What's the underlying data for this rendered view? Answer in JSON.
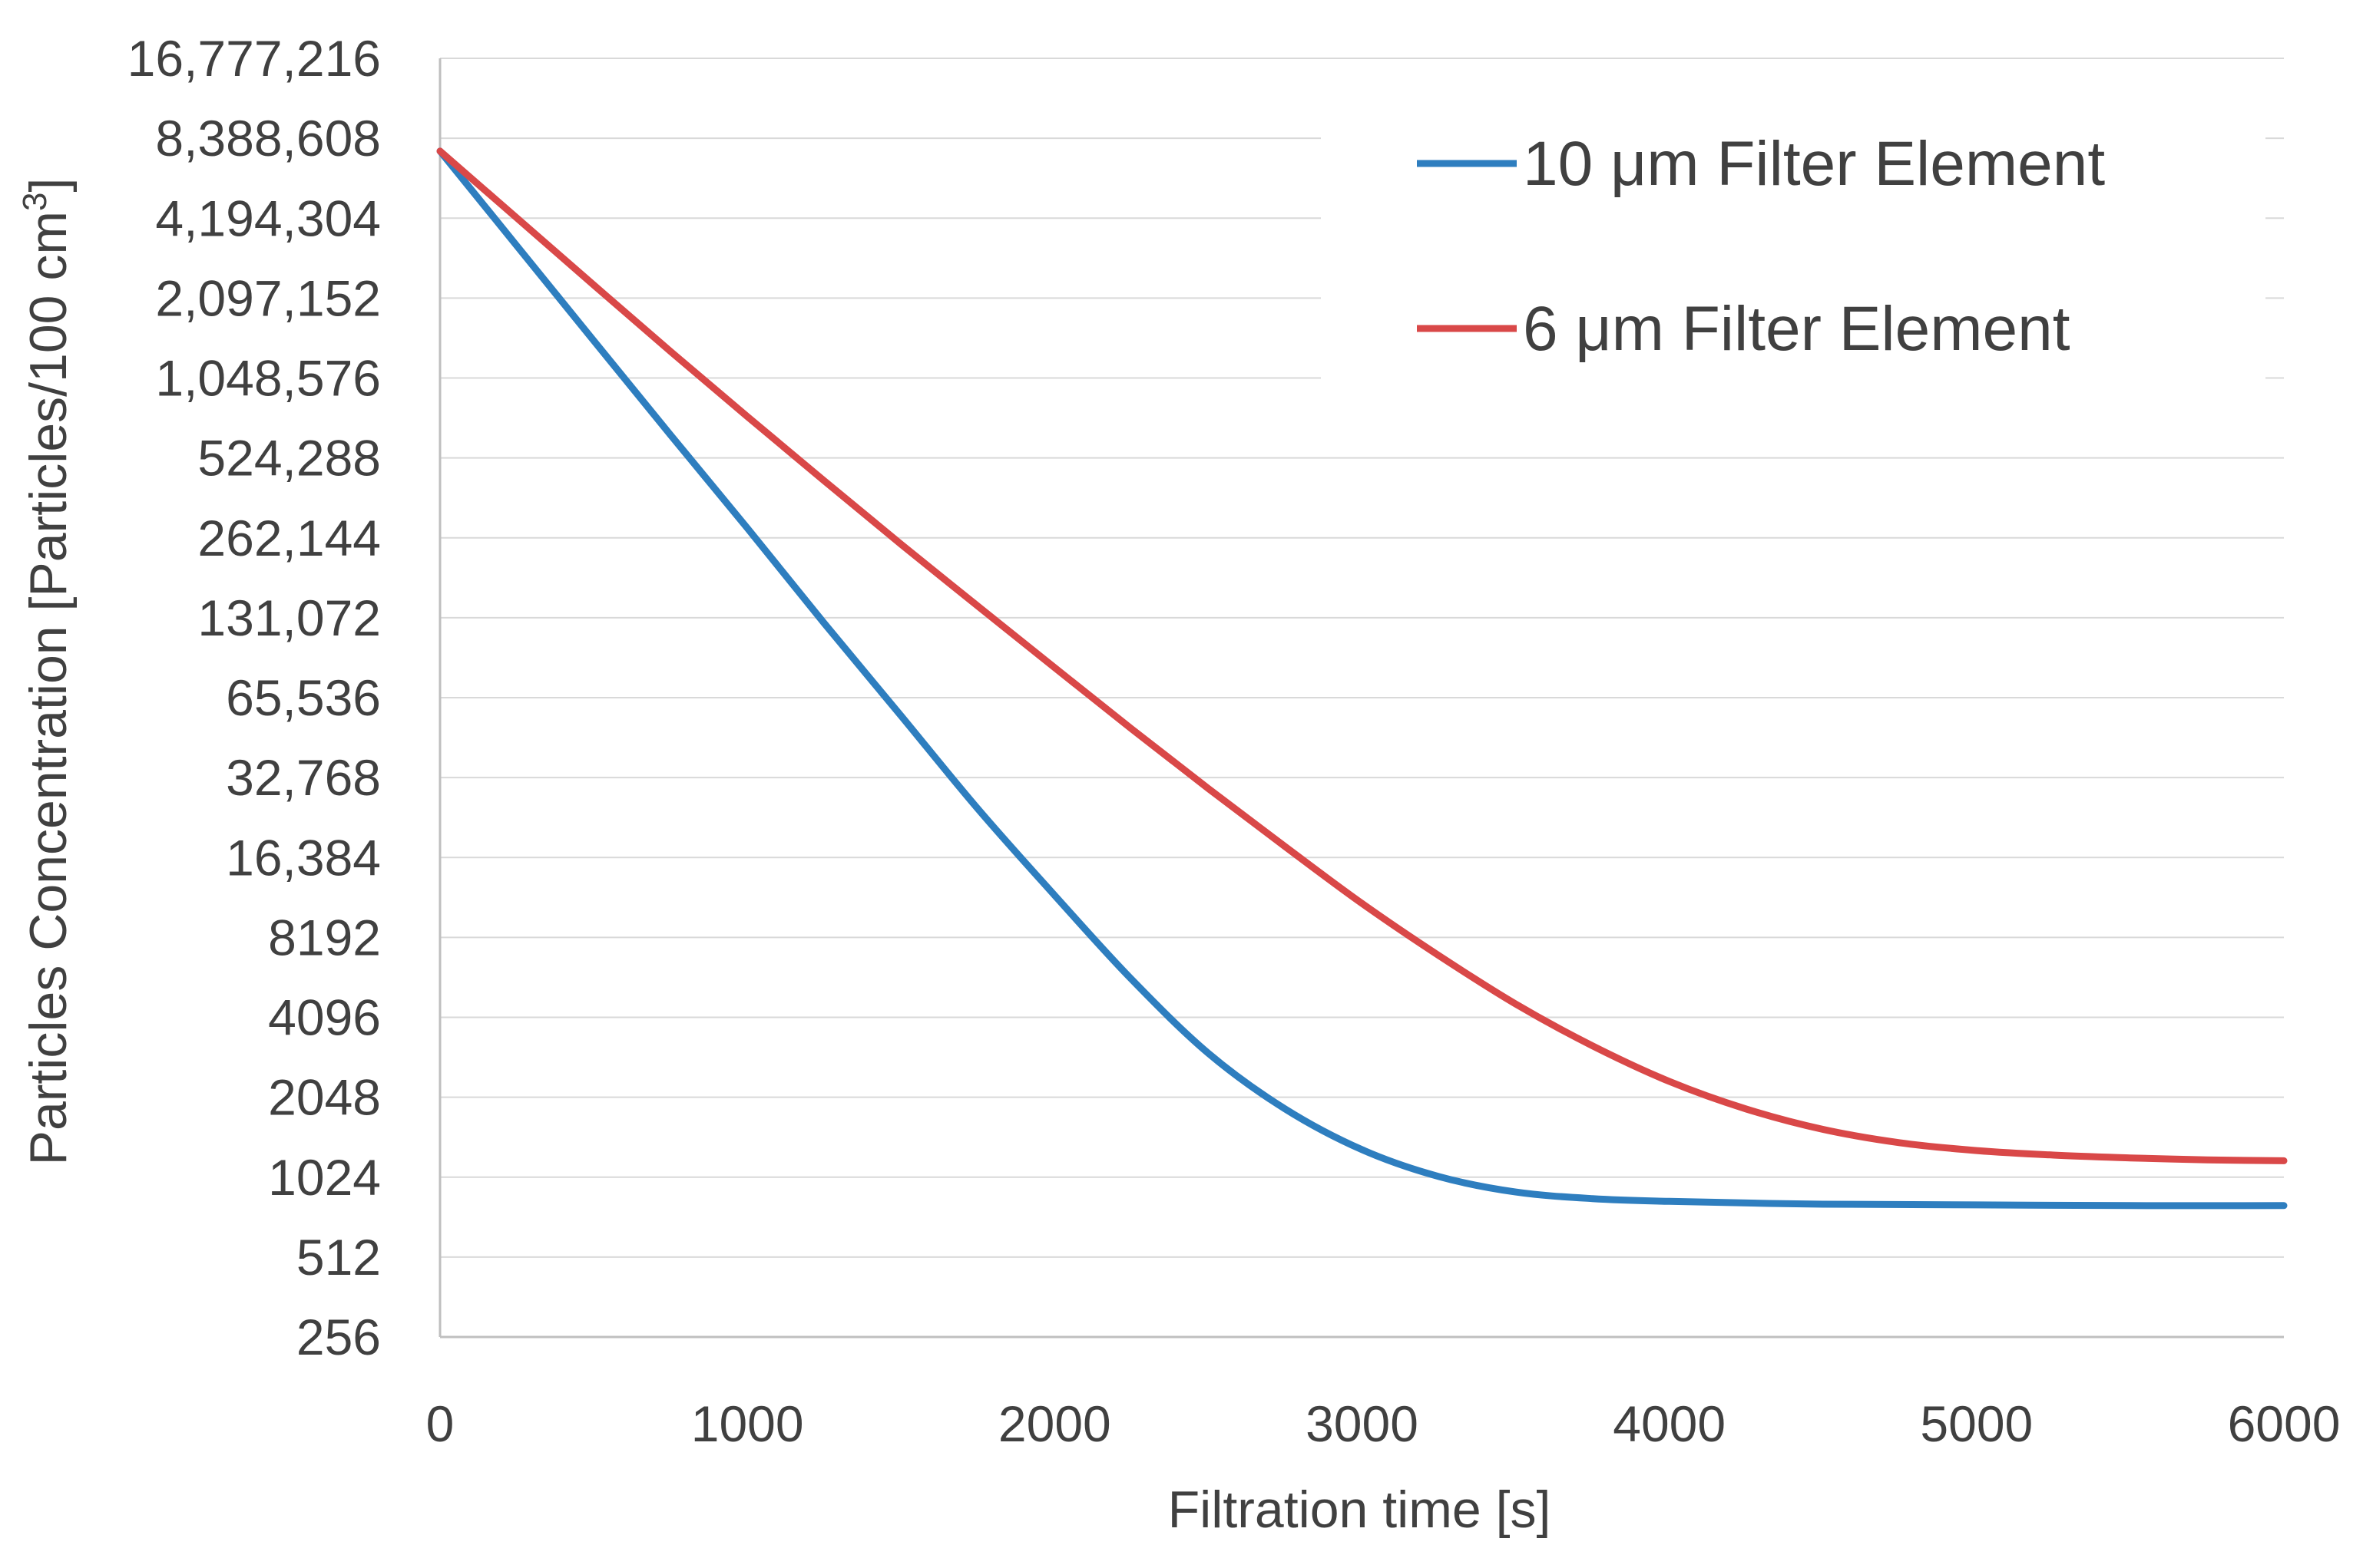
{
  "chart_data": {
    "type": "line",
    "title": "",
    "xlabel": "Filtration time [s]",
    "ylabel": "Particles Concentration [Particles/100 cm",
    "ylabel_superscript": "3",
    "ylabel_suffix": "]",
    "yscale": "log2",
    "xlim": [
      0,
      6000
    ],
    "ylim": [
      256,
      16777216
    ],
    "grid": true,
    "legend_position": "top-right",
    "x_ticks": [
      "0",
      "1000",
      "2000",
      "3000",
      "4000",
      "5000",
      "6000"
    ],
    "y_ticks": [
      "16,777,216",
      "8,388,608",
      "4,194,304",
      "2,097,152",
      "1,048,576",
      "524,288",
      "262,144",
      "131,072",
      "65,536",
      "32,768",
      "16,384",
      "8192",
      "4096",
      "2048",
      "1024",
      "512",
      "256"
    ],
    "y_tick_values": [
      16777216,
      8388608,
      4194304,
      2097152,
      1048576,
      524288,
      262144,
      131072,
      65536,
      32768,
      16384,
      8192,
      4096,
      2048,
      1024,
      512,
      256
    ],
    "series": [
      {
        "name": "10 μm Filter Element",
        "color": "#2e7ebf",
        "x": [
          0,
          250,
          500,
          750,
          1000,
          1250,
          1500,
          1750,
          2000,
          2250,
          2500,
          2750,
          3000,
          3250,
          3500,
          3750,
          4000,
          4500,
          5000,
          5500,
          6000
        ],
        "y": [
          7500000,
          3300000,
          1450000,
          640000,
          285000,
          125000,
          56000,
          25000,
          11800,
          5700,
          3000,
          1850,
          1300,
          1030,
          900,
          850,
          830,
          810,
          805,
          800,
          800
        ]
      },
      {
        "name": "6 μm Filter Element",
        "color": "#d94848",
        "x": [
          0,
          250,
          500,
          750,
          1000,
          1250,
          1500,
          1750,
          2000,
          2250,
          2500,
          2750,
          3000,
          3250,
          3500,
          3750,
          4000,
          4250,
          4500,
          4750,
          5000,
          5250,
          5500,
          5750,
          6000
        ],
        "y": [
          7500000,
          4200000,
          2350000,
          1320000,
          750000,
          430000,
          248000,
          145000,
          85000,
          50000,
          29800,
          18000,
          11000,
          7000,
          4600,
          3200,
          2350,
          1850,
          1550,
          1380,
          1290,
          1240,
          1210,
          1190,
          1180
        ]
      }
    ]
  }
}
